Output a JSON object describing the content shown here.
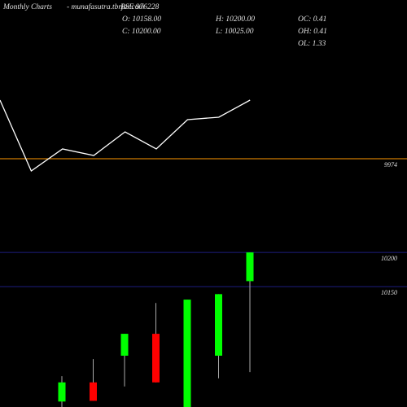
{
  "header": {
    "site": "Monthly Charts",
    "url": "- munafasutra.tbrjar.com",
    "symbol": "BSE 976228",
    "open": "O: 10158.00",
    "high": "H: 10200.00",
    "oc": "OC: 0.41",
    "close": "C: 10200.00",
    "low": "L: 10025.00",
    "oh": "OH: 0.41",
    "ol": "OL: 1.33"
  },
  "chart_data": [
    {
      "type": "line",
      "color": "#ffffff",
      "values": [
        10046,
        9959,
        9986,
        9978,
        10007,
        9986,
        10022,
        10025,
        10046
      ],
      "ylim": [
        9909,
        10169
      ],
      "yticks": [
        9974
      ],
      "tick_color": "#ff9900"
    },
    {
      "type": "candlestick",
      "up_color": "#00ff00",
      "down_color": "#ff0000",
      "wick_color": "#aaaaaa",
      "open": [
        9982,
        10010,
        10049,
        10081,
        9974,
        10049,
        10158
      ],
      "high": [
        10019,
        10044,
        10081,
        10126,
        10131,
        10139,
        10200
      ],
      "low": [
        9974,
        9983,
        10004,
        10010,
        9974,
        10016,
        10025
      ],
      "close": [
        10010,
        9983,
        10081,
        10010,
        10131,
        10139,
        10200
      ],
      "ylim": [
        9974,
        10212
      ],
      "yticks": [
        10200,
        10150
      ],
      "tick_color": "#1c1c80"
    }
  ]
}
